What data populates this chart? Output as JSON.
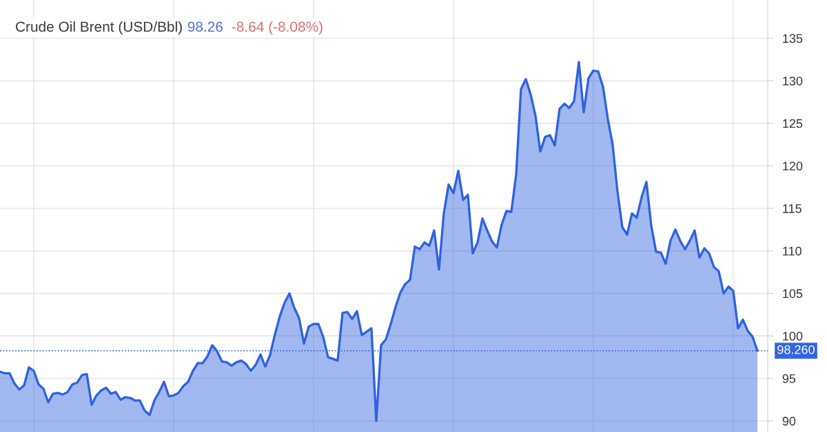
{
  "chart_data": {
    "type": "area",
    "title": "Crude Oil Brent (USD/Bbl)",
    "annotations": [
      "98.26",
      "-8.64 (-8.08%)"
    ],
    "categories": [
      null,
      null,
      null,
      null,
      null,
      null,
      null,
      null,
      null,
      null,
      null,
      null,
      null,
      null,
      null,
      null,
      null,
      null,
      null,
      null,
      null,
      null,
      null,
      null,
      null,
      null,
      null,
      null,
      null,
      null,
      null,
      null,
      null,
      null,
      null,
      null,
      null,
      null,
      null,
      null,
      null,
      null,
      null,
      null,
      null,
      null,
      null,
      null,
      null,
      null,
      null,
      null,
      null,
      null,
      null,
      null,
      null,
      null,
      null,
      null,
      null,
      null,
      null,
      null,
      null,
      null,
      null,
      null,
      null,
      null,
      null,
      null,
      null,
      null,
      null,
      null,
      null,
      null,
      null,
      null,
      null,
      null,
      null,
      null,
      null,
      null,
      null,
      null,
      null,
      null,
      null,
      null,
      null,
      null,
      null,
      null,
      null,
      null,
      null,
      null,
      null,
      null,
      null,
      null,
      null,
      null,
      null,
      null,
      null,
      null,
      null,
      null,
      null,
      null,
      null,
      null,
      null,
      null,
      null,
      null,
      null,
      null,
      null,
      null,
      null,
      null,
      null,
      null,
      null,
      null,
      null,
      null,
      null,
      null,
      null,
      null,
      null,
      null,
      null,
      null,
      null,
      null,
      null,
      null,
      null,
      null,
      null,
      null,
      null,
      null,
      null,
      null,
      null,
      null,
      null,
      null,
      null,
      null
    ],
    "series": [
      {
        "color": "#2f62e0",
        "values": [
          95.8,
          95.6,
          95.6,
          94.4,
          93.7,
          94.2,
          96.3,
          95.9,
          94.3,
          93.8,
          92.2,
          93.2,
          93.3,
          93.1,
          93.4,
          94.3,
          94.5,
          95.4,
          95.5,
          91.9,
          93.0,
          93.6,
          93.9,
          93.2,
          93.4,
          92.5,
          92.8,
          92.7,
          92.4,
          92.4,
          91.2,
          90.7,
          92.4,
          93.4,
          94.6,
          92.9,
          93.0,
          93.3,
          94.1,
          94.6,
          95.9,
          96.8,
          96.8,
          97.6,
          98.9,
          98.2,
          97.0,
          96.9,
          96.5,
          96.9,
          97.1,
          96.7,
          95.9,
          96.6,
          97.8,
          96.4,
          97.8,
          100.2,
          102.3,
          103.9,
          105.0,
          103.3,
          102.1,
          99.1,
          101.1,
          101.4,
          101.4,
          99.9,
          97.5,
          97.3,
          97.1,
          102.7,
          102.8,
          102.0,
          102.9,
          100.1,
          100.5,
          100.9,
          90.0,
          98.9,
          99.6,
          101.4,
          103.4,
          105.1,
          106.1,
          106.6,
          110.5,
          110.2,
          111.0,
          110.6,
          112.4,
          107.8,
          114.4,
          117.8,
          116.8,
          119.4,
          116.0,
          116.6,
          109.7,
          111.0,
          113.8,
          112.4,
          111.1,
          110.4,
          113.1,
          114.7,
          114.6,
          119.0,
          129.0,
          130.2,
          128.4,
          125.9,
          121.7,
          123.4,
          123.6,
          122.4,
          126.7,
          127.3,
          126.8,
          127.6,
          132.2,
          126.3,
          130.3,
          131.2,
          131.1,
          129.3,
          125.5,
          122.5,
          117.0,
          112.8,
          111.9,
          114.4,
          113.9,
          116.3,
          118.1,
          113.0,
          109.9,
          109.8,
          108.5,
          111.2,
          112.5,
          111.2,
          110.2,
          111.2,
          112.4,
          109.2,
          110.3,
          109.7,
          108.1,
          107.6,
          105.0,
          105.8,
          105.3,
          100.9,
          101.9,
          100.6,
          99.9,
          98.26
        ]
      }
    ],
    "ylim": [
      88.7,
      139.5
    ],
    "yticks": [
      90,
      95,
      100,
      105,
      110,
      115,
      120,
      125,
      130,
      135
    ],
    "grid": true,
    "tick_labels": "y",
    "ref_lines": [
      {
        "axis": "y",
        "value": 98.26,
        "label": "98.260",
        "color": "#3366e0",
        "line_style": "dotted"
      }
    ]
  }
}
